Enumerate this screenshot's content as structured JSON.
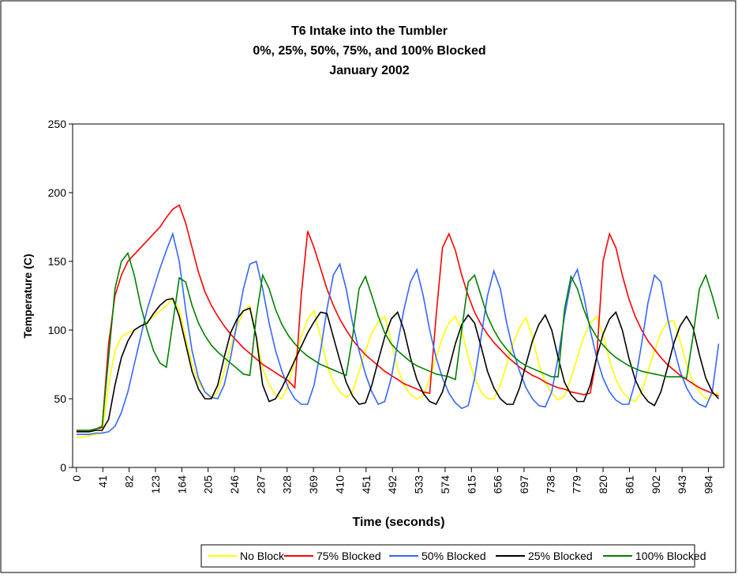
{
  "chart_data": {
    "type": "line",
    "title": [
      "T6 Intake into the Tumbler",
      "0%, 25%, 50%, 75%, and 100% Blocked",
      "January 2002"
    ],
    "xlabel": "Time (seconds)",
    "ylabel": "Temperature (C)",
    "xlim": [
      -6,
      1008
    ],
    "xticks": [
      0,
      41,
      82,
      123,
      164,
      205,
      246,
      287,
      328,
      369,
      410,
      451,
      492,
      533,
      574,
      615,
      656,
      697,
      738,
      779,
      820,
      861,
      902,
      943,
      984
    ],
    "ylim": [
      0,
      250
    ],
    "yticks": [
      0,
      50,
      100,
      150,
      200,
      250
    ],
    "grid": false,
    "legend": "bottom",
    "x": [
      0,
      10,
      20,
      30,
      40,
      50,
      60,
      70,
      80,
      90,
      100,
      110,
      120,
      130,
      140,
      150,
      160,
      170,
      180,
      190,
      200,
      210,
      220,
      230,
      240,
      250,
      260,
      270,
      280,
      290,
      300,
      310,
      320,
      330,
      340,
      350,
      360,
      370,
      380,
      390,
      400,
      410,
      420,
      430,
      440,
      450,
      460,
      470,
      480,
      490,
      500,
      510,
      520,
      530,
      540,
      550,
      560,
      570,
      580,
      590,
      600,
      610,
      620,
      630,
      640,
      650,
      660,
      670,
      680,
      690,
      700,
      710,
      720,
      730,
      740,
      750,
      760,
      770,
      780,
      790,
      800,
      810,
      820,
      830,
      840,
      850,
      860,
      870,
      880,
      890,
      900,
      910,
      920,
      930,
      940,
      950,
      960,
      970,
      980,
      990,
      1000
    ],
    "series": [
      {
        "name": "No Block",
        "color": "#ffff00",
        "values": [
          22,
          22,
          23,
          24,
          25,
          60,
          85,
          95,
          98,
          100,
          103,
          106,
          110,
          114,
          118,
          123,
          115,
          95,
          75,
          62,
          55,
          50,
          55,
          70,
          88,
          102,
          114,
          118,
          95,
          72,
          60,
          53,
          50,
          60,
          78,
          95,
          108,
          114,
          95,
          75,
          62,
          55,
          51,
          55,
          70,
          85,
          98,
          106,
          110,
          92,
          72,
          60,
          53,
          50,
          52,
          65,
          80,
          95,
          105,
          110,
          100,
          80,
          65,
          55,
          50,
          50,
          60,
          75,
          90,
          102,
          109,
          95,
          75,
          62,
          54,
          49,
          52,
          65,
          80,
          95,
          105,
          110,
          97,
          78,
          64,
          55,
          50,
          48,
          55,
          70,
          85,
          98,
          106,
          107,
          92,
          75,
          62,
          55,
          50,
          52,
          55
        ]
      },
      {
        "name": "75% Blocked",
        "color": "#ff0000",
        "values": [
          27,
          27,
          27,
          28,
          29,
          90,
          125,
          140,
          150,
          155,
          160,
          165,
          170,
          175,
          182,
          188,
          191,
          178,
          160,
          142,
          128,
          118,
          110,
          103,
          97,
          92,
          87,
          83,
          79,
          75,
          72,
          69,
          66,
          63,
          58,
          125,
          172,
          160,
          145,
          130,
          118,
          108,
          100,
          93,
          87,
          82,
          78,
          74,
          70,
          67,
          64,
          61,
          59,
          57,
          55,
          54,
          110,
          160,
          170,
          158,
          140,
          125,
          113,
          104,
          97,
          91,
          86,
          81,
          77,
          73,
          70,
          67,
          65,
          62,
          60,
          58,
          57,
          55,
          54,
          53,
          54,
          80,
          150,
          170,
          160,
          140,
          123,
          110,
          100,
          92,
          86,
          80,
          75,
          71,
          67,
          64,
          61,
          58,
          56,
          54,
          52
        ]
      },
      {
        "name": "50% Blocked",
        "color": "#3366ff",
        "values": [
          24,
          24,
          24,
          25,
          25,
          26,
          30,
          40,
          55,
          75,
          95,
          115,
          130,
          145,
          158,
          170,
          150,
          115,
          85,
          65,
          55,
          51,
          50,
          60,
          80,
          105,
          130,
          148,
          150,
          130,
          105,
          85,
          70,
          58,
          50,
          46,
          46,
          60,
          85,
          115,
          140,
          148,
          130,
          105,
          85,
          68,
          55,
          46,
          48,
          65,
          90,
          115,
          135,
          144,
          125,
          100,
          80,
          65,
          54,
          47,
          43,
          45,
          65,
          95,
          125,
          143,
          130,
          105,
          85,
          70,
          58,
          50,
          45,
          44,
          55,
          80,
          110,
          135,
          144,
          125,
          100,
          80,
          65,
          55,
          49,
          46,
          46,
          62,
          90,
          120,
          140,
          135,
          110,
          88,
          70,
          58,
          50,
          46,
          44,
          55,
          90
        ]
      },
      {
        "name": "25% Blocked",
        "color": "#000000",
        "values": [
          26,
          26,
          26,
          27,
          27,
          35,
          60,
          80,
          92,
          100,
          103,
          105,
          112,
          118,
          122,
          123,
          110,
          90,
          70,
          57,
          50,
          50,
          60,
          80,
          98,
          108,
          114,
          116,
          95,
          60,
          48,
          50,
          58,
          68,
          78,
          88,
          98,
          106,
          113,
          112,
          95,
          78,
          62,
          52,
          46,
          47,
          60,
          78,
          95,
          108,
          113,
          100,
          80,
          64,
          54,
          48,
          46,
          55,
          72,
          90,
          104,
          111,
          105,
          88,
          70,
          58,
          50,
          46,
          46,
          58,
          75,
          92,
          104,
          111,
          100,
          80,
          62,
          53,
          48,
          48,
          60,
          80,
          97,
          108,
          113,
          100,
          80,
          64,
          54,
          48,
          45,
          55,
          72,
          90,
          103,
          110,
          102,
          82,
          65,
          55,
          50
        ]
      },
      {
        "name": "100% Blocked",
        "color": "#008000",
        "values": [
          27,
          27,
          27,
          28,
          30,
          80,
          130,
          150,
          156,
          140,
          118,
          100,
          85,
          76,
          73,
          105,
          138,
          135,
          118,
          105,
          96,
          89,
          84,
          80,
          76,
          72,
          68,
          67,
          110,
          140,
          130,
          115,
          104,
          96,
          90,
          85,
          81,
          78,
          75,
          73,
          71,
          69,
          67,
          95,
          130,
          139,
          125,
          110,
          98,
          90,
          85,
          81,
          77,
          74,
          72,
          70,
          68,
          67,
          66,
          64,
          100,
          135,
          140,
          125,
          110,
          100,
          92,
          86,
          81,
          77,
          74,
          72,
          70,
          68,
          66,
          66,
          115,
          139,
          130,
          115,
          103,
          95,
          89,
          84,
          80,
          77,
          74,
          72,
          70,
          69,
          68,
          67,
          66,
          66,
          66,
          65,
          95,
          130,
          140,
          125,
          108
        ]
      }
    ]
  }
}
